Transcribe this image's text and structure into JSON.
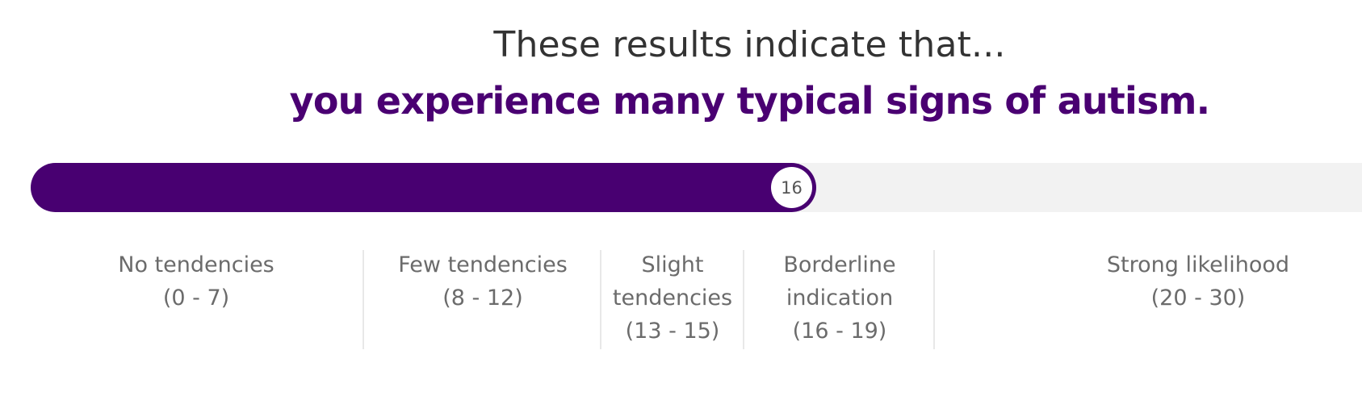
{
  "result": {
    "intro": "These results indicate that...",
    "conclusion": "you experience many typical signs of autism."
  },
  "score": {
    "value": "16",
    "max": 30,
    "fill_fraction": 0.59
  },
  "colors": {
    "accent": "#480071",
    "track": "#f2f2f2",
    "text": "#333333",
    "muted_text": "#6b6b6b"
  },
  "ranges": [
    {
      "label": "No tendencies",
      "span": "(0 - 7)"
    },
    {
      "label": "Few tendencies",
      "span": "(8 - 12)"
    },
    {
      "label_line1": "Slight",
      "label_line2": "tendencies",
      "span": "(13 - 15)"
    },
    {
      "label_line1": "Borderline",
      "label_line2": "indication",
      "span": "(16 - 19)"
    },
    {
      "label": "Strong likelihood",
      "span": "(20 - 30)"
    }
  ]
}
